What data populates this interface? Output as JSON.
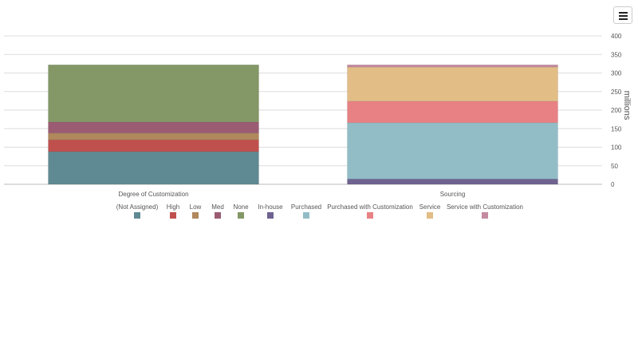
{
  "toolbar": {
    "menu_icon": "hamburger-menu-icon"
  },
  "chart_data": {
    "type": "bar",
    "stacked": true,
    "categories": [
      "Degree of Customization",
      "Sourcing"
    ],
    "ylabel": "millions",
    "ylim": [
      0,
      400
    ],
    "yticks": [
      0,
      50,
      100,
      150,
      200,
      250,
      300,
      350,
      400
    ],
    "grid": true,
    "legend_position": "bottom",
    "series": [
      {
        "name": "(Not Assigned)",
        "color": "#5f8a93",
        "values": [
          88,
          0
        ]
      },
      {
        "name": "High",
        "color": "#c0504d",
        "values": [
          32,
          0
        ]
      },
      {
        "name": "Low",
        "color": "#b0885c",
        "values": [
          18,
          0
        ]
      },
      {
        "name": "Med",
        "color": "#9b5c73",
        "values": [
          30,
          0
        ]
      },
      {
        "name": "None",
        "color": "#839866",
        "values": [
          154,
          0
        ]
      },
      {
        "name": "In-house",
        "color": "#6e6290",
        "values": [
          0,
          14
        ]
      },
      {
        "name": "Purchased",
        "color": "#92bdc7",
        "values": [
          0,
          152
        ]
      },
      {
        "name": "Purchased with Customization",
        "color": "#e88184",
        "values": [
          0,
          58
        ]
      },
      {
        "name": "Service",
        "color": "#e2bd86",
        "values": [
          0,
          92
        ]
      },
      {
        "name": "Service with Customization",
        "color": "#c48aa0",
        "values": [
          0,
          6
        ]
      }
    ]
  }
}
